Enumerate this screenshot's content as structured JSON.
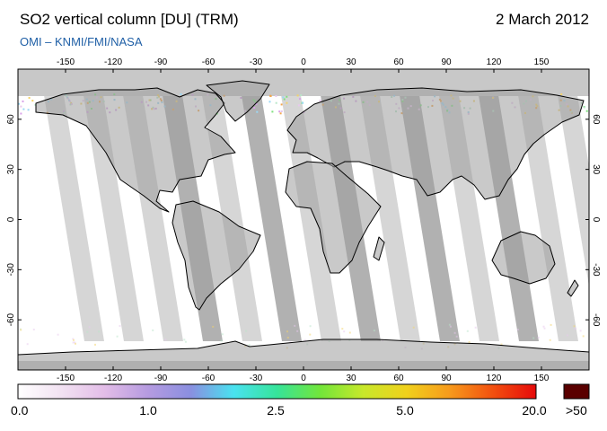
{
  "header": {
    "title": "SO2 vertical column [DU] (TRM)",
    "date": "2 March 2012",
    "credit": "OMI  –  KNMI/FMI/NASA"
  },
  "map": {
    "lon_ticks": [
      "-150",
      "-120",
      "-90",
      "-60",
      "-30",
      "0",
      "30",
      "60",
      "90",
      "120",
      "150"
    ],
    "lat_ticks": [
      "60",
      "30",
      "0",
      "-30",
      "-60"
    ],
    "lon_range": [
      -180,
      180
    ],
    "lat_range": [
      -90,
      90
    ],
    "ocean_color": "#ffffff",
    "coast_color": "#000000",
    "polar_cap_color": "#c8c8c8",
    "swath_light": "#d2d2d2",
    "swath_dark": "#a8a8a8"
  },
  "colorbar": {
    "labels": [
      "0.0",
      "1.0",
      "2.5",
      "5.0",
      "20.0"
    ],
    "overflow_label": ">50",
    "overflow_color": "#5a0000",
    "gradient_colors": [
      "#ffffff",
      "#f2e2f2",
      "#e3bde8",
      "#b69be0",
      "#8a8fe0",
      "#49e2f0",
      "#36e49a",
      "#72e63a",
      "#c8e82a",
      "#f0d11c",
      "#f79a1c",
      "#f2500f",
      "#e60a0a"
    ]
  }
}
